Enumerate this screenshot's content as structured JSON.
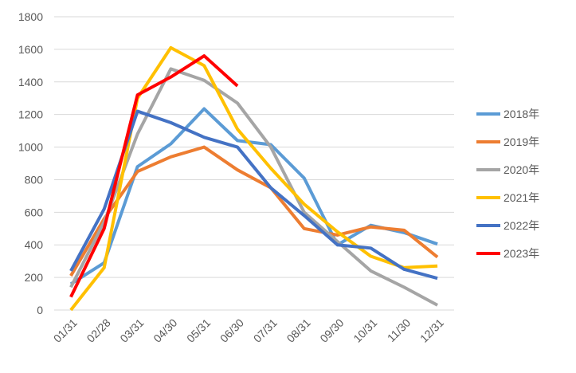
{
  "chart_data": {
    "type": "line",
    "categories": [
      "01/31",
      "02/28",
      "03/31",
      "04/30",
      "05/31",
      "06/30",
      "07/31",
      "08/31",
      "09/30",
      "10/31",
      "11/30",
      "12/31"
    ],
    "ylim": [
      0,
      1800
    ],
    "yticks": [
      0,
      200,
      400,
      600,
      800,
      1000,
      1200,
      1400,
      1600,
      1800
    ],
    "grid": true,
    "legend": "right",
    "series": [
      {
        "name": "2018年",
        "color": "#5b9bd5",
        "values": [
          160,
          290,
          880,
          1020,
          1235,
          1040,
          1015,
          810,
          400,
          520,
          475,
          405
        ]
      },
      {
        "name": "2019年",
        "color": "#ed7d31",
        "values": [
          210,
          560,
          850,
          940,
          1000,
          860,
          750,
          500,
          460,
          510,
          490,
          325
        ]
      },
      {
        "name": "2020年",
        "color": "#a5a5a5",
        "values": [
          140,
          540,
          1080,
          1480,
          1410,
          1270,
          1000,
          600,
          420,
          240,
          140,
          30
        ]
      },
      {
        "name": "2021年",
        "color": "#ffc000",
        "values": [
          0,
          260,
          1300,
          1610,
          1500,
          1110,
          870,
          650,
          480,
          330,
          260,
          270
        ]
      },
      {
        "name": "2022年",
        "color": "#4472c4",
        "values": [
          240,
          620,
          1220,
          1150,
          1060,
          1000,
          750,
          580,
          400,
          380,
          250,
          195
        ]
      },
      {
        "name": "2023年",
        "color": "#ff0000",
        "values": [
          80,
          500,
          1320,
          1430,
          1560,
          1375,
          null,
          null,
          null,
          null,
          null,
          null
        ]
      }
    ]
  }
}
